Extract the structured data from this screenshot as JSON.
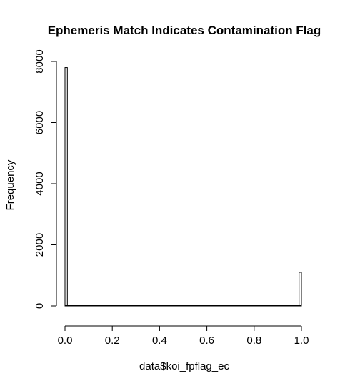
{
  "chart_data": {
    "type": "bar",
    "title": "Ephemeris Match Indicates Contamination Flag",
    "xlabel": "data$koi_fpflag_ec",
    "ylabel": "Frequency",
    "xlim": [
      0,
      1
    ],
    "ylim": [
      0,
      8000
    ],
    "x_ticks": [
      {
        "value": 0,
        "label": "0.0"
      },
      {
        "value": 0.2,
        "label": "0.2"
      },
      {
        "value": 0.4,
        "label": "0.4"
      },
      {
        "value": 0.6,
        "label": "0.6"
      },
      {
        "value": 0.8,
        "label": "0.8"
      },
      {
        "value": 1,
        "label": "1.0"
      }
    ],
    "y_ticks": [
      {
        "value": 0,
        "label": "0"
      },
      {
        "value": 2000,
        "label": "2000"
      },
      {
        "value": 4000,
        "label": "4000"
      },
      {
        "value": 6000,
        "label": "6000"
      },
      {
        "value": 8000,
        "label": "8000"
      }
    ],
    "bins": [
      {
        "x0": 0.0,
        "x1": 0.01,
        "value": 7800
      },
      {
        "x0": 0.99,
        "x1": 1.0,
        "value": 1100
      }
    ],
    "grid": false,
    "legend": "none",
    "colors": {
      "bar_fill": "#ffffff",
      "bar_stroke": "#000000"
    }
  }
}
